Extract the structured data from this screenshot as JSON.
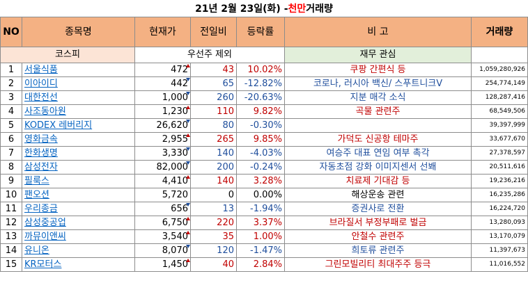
{
  "title": {
    "pre": "21년 2월 23일(화) - ",
    "highlight": "천만",
    "post": " 거래량"
  },
  "headers": {
    "no": "NO",
    "name": "종목명",
    "price": "현재가",
    "change": "전일비",
    "rate": "등락률",
    "note": "비 고",
    "volume": "거래량"
  },
  "subheader": {
    "market": "코스피",
    "exclude": "우선주 제외",
    "interest": "재무 관심"
  },
  "rows": [
    {
      "no": "1",
      "name": "서울식품",
      "price": "472",
      "change": "43",
      "rate": "10.02%",
      "dir": "up",
      "note": "쿠팡 간편식 등",
      "volume": "1,059,280,926"
    },
    {
      "no": "2",
      "name": "이아이디",
      "price": "442",
      "change": "65",
      "rate": "-12.82%",
      "dir": "down",
      "note": "코로나, 러시아 백신/ 스푸트니크V",
      "volume": "254,774,149"
    },
    {
      "no": "3",
      "name": "대한전선",
      "price": "1,000",
      "change": "260",
      "rate": "-20.63%",
      "dir": "down",
      "note": "지분 매각 소식",
      "volume": "128,287,416"
    },
    {
      "no": "4",
      "name": "사조동아원",
      "price": "1,230",
      "change": "110",
      "rate": "9.82%",
      "dir": "up",
      "note": "곡물 관련주",
      "volume": "68,549,506"
    },
    {
      "no": "5",
      "name": "KODEX 레버리지",
      "price": "26,620",
      "change": "80",
      "rate": "-0.30%",
      "dir": "down",
      "note": "",
      "volume": "39,397,999"
    },
    {
      "no": "6",
      "name": "영화금속",
      "price": "2,955",
      "change": "265",
      "rate": "9.85%",
      "dir": "up",
      "note": "가덕도 신공항 테마주",
      "volume": "33,677,670"
    },
    {
      "no": "7",
      "name": "한화생명",
      "price": "3,330",
      "change": "140",
      "rate": "-4.03%",
      "dir": "down",
      "note": "여승주 대표 연임 여부 촉각",
      "volume": "27,378,597"
    },
    {
      "no": "8",
      "name": "삼성전자",
      "price": "82,000",
      "change": "200",
      "rate": "-0.24%",
      "dir": "down",
      "note": "자동초점 강화 이미지센서 선봬",
      "volume": "20,511,616"
    },
    {
      "no": "9",
      "name": "필룩스",
      "price": "4,410",
      "change": "140",
      "rate": "3.28%",
      "dir": "up",
      "note": "치료제 기대감 등",
      "volume": "19,236,216"
    },
    {
      "no": "10",
      "name": "팬오션",
      "price": "5,720",
      "change": "0",
      "rate": "0.00%",
      "dir": "flat",
      "note": "해상운송 관련",
      "volume": "16,235,286"
    },
    {
      "no": "11",
      "name": "우리종금",
      "price": "656",
      "change": "13",
      "rate": "-1.94%",
      "dir": "down",
      "note": "증권사로 전환",
      "volume": "16,224,720"
    },
    {
      "no": "12",
      "name": "삼성중공업",
      "price": "6,750",
      "change": "220",
      "rate": "3.37%",
      "dir": "up",
      "note": "브라질서 부정부패로 벌금",
      "volume": "13,280,093"
    },
    {
      "no": "13",
      "name": "까뮤이앤씨",
      "price": "3,540",
      "change": "35",
      "rate": "1.00%",
      "dir": "up",
      "note": "안철수 관련주",
      "volume": "13,170,079"
    },
    {
      "no": "14",
      "name": "유니온",
      "price": "8,070",
      "change": "120",
      "rate": "-1.47%",
      "dir": "down",
      "note": "희토류 관련주",
      "volume": "11,397,673"
    },
    {
      "no": "15",
      "name": "KR모터스",
      "price": "1,450",
      "change": "40",
      "rate": "2.84%",
      "dir": "up",
      "note": "그린모빌리티 최대주주 등극",
      "volume": "11,016,552"
    }
  ]
}
